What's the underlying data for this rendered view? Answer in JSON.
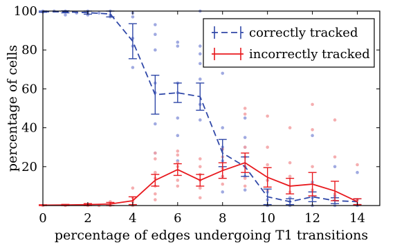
{
  "chart_data": {
    "type": "line",
    "xlabel": "percentage of edges undergoing T1 transitions",
    "ylabel": "percentage of cells",
    "xlim": [
      0,
      15
    ],
    "ylim": [
      0,
      100
    ],
    "x_ticks": [
      0,
      2,
      4,
      6,
      8,
      10,
      12,
      14
    ],
    "y_ticks": [
      20,
      40,
      60,
      80,
      100
    ],
    "legend_position": "top-right",
    "grid": false,
    "series": [
      {
        "name": "correctly tracked",
        "color": "#3048a8",
        "point_color": "#8f9bdc",
        "line_style": "dashed",
        "x": [
          0,
          1,
          2,
          3,
          4,
          5,
          6,
          7,
          8,
          9,
          10,
          11,
          12,
          13,
          14
        ],
        "y": [
          99.7,
          99.6,
          99.2,
          98.5,
          84.5,
          57.0,
          58.0,
          56.0,
          27.0,
          20.0,
          4.5,
          2.0,
          4.5,
          2.5,
          2.0
        ],
        "err": [
          0.3,
          0.5,
          0.8,
          1.5,
          9.0,
          10.0,
          5.0,
          7.0,
          7.0,
          5.0,
          4.0,
          1.5,
          2.5,
          1.5,
          1.5
        ],
        "scatter": [
          [
            0,
            100
          ],
          [
            0,
            99.5
          ],
          [
            0.5,
            100
          ],
          [
            1,
            100
          ],
          [
            1,
            98
          ],
          [
            1.5,
            99
          ],
          [
            2,
            100
          ],
          [
            2,
            99
          ],
          [
            2,
            98
          ],
          [
            2.5,
            99
          ],
          [
            3,
            100
          ],
          [
            3,
            98
          ],
          [
            3,
            97
          ],
          [
            4,
            99
          ],
          [
            4,
            97
          ],
          [
            4,
            86
          ],
          [
            4,
            82
          ],
          [
            4,
            71
          ],
          [
            5,
            93
          ],
          [
            5,
            88
          ],
          [
            5,
            80
          ],
          [
            5,
            63
          ],
          [
            5,
            58
          ],
          [
            5,
            42
          ],
          [
            5,
            27
          ],
          [
            6,
            84
          ],
          [
            6,
            82
          ],
          [
            6,
            63
          ],
          [
            6,
            58
          ],
          [
            6,
            45
          ],
          [
            6,
            36
          ],
          [
            6,
            23
          ],
          [
            7,
            100
          ],
          [
            7,
            82
          ],
          [
            7,
            78
          ],
          [
            7,
            73
          ],
          [
            7,
            65
          ],
          [
            7,
            52
          ],
          [
            7,
            44
          ],
          [
            8,
            77
          ],
          [
            8,
            68
          ],
          [
            8,
            40
          ],
          [
            8,
            30
          ],
          [
            8,
            23
          ],
          [
            8,
            15
          ],
          [
            8,
            7
          ],
          [
            9,
            45
          ],
          [
            9,
            35
          ],
          [
            9,
            30
          ],
          [
            9,
            20
          ],
          [
            9,
            15
          ],
          [
            9,
            8
          ],
          [
            10,
            13
          ],
          [
            10,
            7
          ],
          [
            10,
            3
          ],
          [
            10,
            0
          ],
          [
            11,
            4
          ],
          [
            11,
            2
          ],
          [
            11,
            0
          ],
          [
            12,
            36
          ],
          [
            12,
            12
          ],
          [
            12,
            4
          ],
          [
            12,
            0
          ],
          [
            13,
            20
          ],
          [
            13,
            5
          ],
          [
            13,
            0
          ],
          [
            14,
            17
          ],
          [
            14,
            3
          ],
          [
            14,
            0
          ]
        ]
      },
      {
        "name": "incorrectly tracked",
        "color": "#e8191e",
        "point_color": "#f3a0a2",
        "line_style": "solid",
        "x": [
          0,
          1,
          2,
          3,
          4,
          5,
          6,
          7,
          8,
          9,
          10,
          11,
          12,
          13,
          14
        ],
        "y": [
          0.2,
          0.3,
          0.5,
          0.8,
          2.5,
          13.0,
          18.5,
          13.0,
          18.0,
          22.0,
          14.5,
          10.0,
          11.0,
          7.5,
          2.0
        ],
        "err": [
          0.2,
          0.3,
          0.5,
          0.8,
          2.0,
          3.0,
          3.0,
          3.0,
          4.0,
          5.0,
          5.0,
          4.0,
          6.0,
          5.0,
          1.5
        ],
        "scatter": [
          [
            0,
            0
          ],
          [
            1,
            0
          ],
          [
            2,
            0
          ],
          [
            2.5,
            0
          ],
          [
            3,
            0
          ],
          [
            3,
            1
          ],
          [
            3,
            2
          ],
          [
            4,
            9
          ],
          [
            4,
            4
          ],
          [
            4,
            2
          ],
          [
            4,
            0
          ],
          [
            5,
            27
          ],
          [
            5,
            24
          ],
          [
            5,
            17
          ],
          [
            5,
            14
          ],
          [
            5,
            10
          ],
          [
            5,
            6
          ],
          [
            5,
            3
          ],
          [
            6,
            28
          ],
          [
            6,
            26
          ],
          [
            6,
            22
          ],
          [
            6,
            20
          ],
          [
            6,
            13
          ],
          [
            6,
            10
          ],
          [
            7,
            24
          ],
          [
            7,
            20
          ],
          [
            7,
            16
          ],
          [
            7,
            13
          ],
          [
            7,
            9
          ],
          [
            7,
            4
          ],
          [
            8,
            29
          ],
          [
            8,
            25
          ],
          [
            8,
            19
          ],
          [
            8,
            15
          ],
          [
            8,
            11
          ],
          [
            9,
            50
          ],
          [
            9,
            47
          ],
          [
            9,
            30
          ],
          [
            9,
            25
          ],
          [
            9,
            14
          ],
          [
            9,
            10
          ],
          [
            10,
            46
          ],
          [
            10,
            30
          ],
          [
            10,
            21
          ],
          [
            10,
            13
          ],
          [
            10,
            8
          ],
          [
            11,
            40
          ],
          [
            11,
            22
          ],
          [
            11,
            15
          ],
          [
            11,
            7
          ],
          [
            12,
            52
          ],
          [
            12,
            39
          ],
          [
            12,
            20
          ],
          [
            12,
            8
          ],
          [
            13,
            44
          ],
          [
            13,
            25
          ],
          [
            13,
            6
          ],
          [
            14,
            21
          ],
          [
            14,
            3
          ]
        ]
      }
    ]
  }
}
